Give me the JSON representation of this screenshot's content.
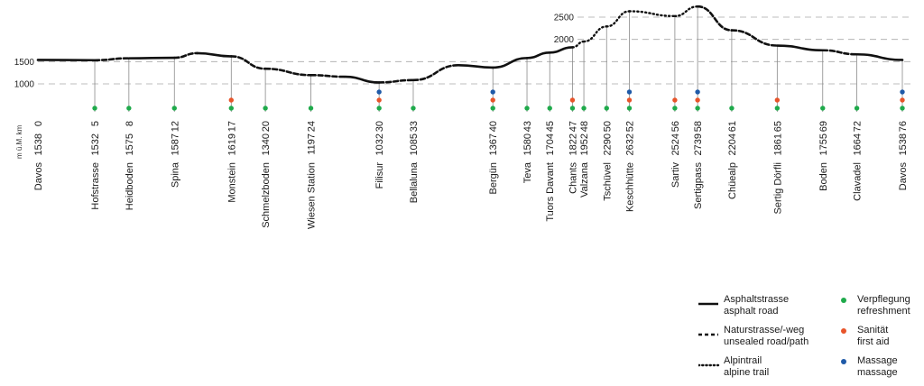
{
  "chart_data": {
    "type": "line",
    "title": "",
    "unit_label": "m ü.M.",
    "km_label": "km",
    "ytick_labels": [
      "1000",
      "1500",
      "2000",
      "2500"
    ],
    "yticks": [
      1000,
      1500,
      2000,
      2500
    ],
    "ylim": [
      850,
      2750
    ],
    "xlim": [
      0,
      76
    ],
    "colors": {
      "refreshment": "#1faa4b",
      "first_aid": "#e8542a",
      "massage": "#1f5aa8",
      "line": "#111111",
      "grid": "#a8a8a8"
    },
    "profile": [
      {
        "km": 0,
        "alt": 1538,
        "surface": "asphalt"
      },
      {
        "km": 5,
        "alt": 1532,
        "surface": "asphalt"
      },
      {
        "km": 8,
        "alt": 1575,
        "surface": "unsealed"
      },
      {
        "km": 12,
        "alt": 1587,
        "surface": "asphalt"
      },
      {
        "km": 14,
        "alt": 1690,
        "surface": "unsealed"
      },
      {
        "km": 17,
        "alt": 1619,
        "surface": "asphalt"
      },
      {
        "km": 20,
        "alt": 1340,
        "surface": "unsealed"
      },
      {
        "km": 24,
        "alt": 1197,
        "surface": "unsealed"
      },
      {
        "km": 27,
        "alt": 1160,
        "surface": "unsealed"
      },
      {
        "km": 30,
        "alt": 1032,
        "surface": "asphalt"
      },
      {
        "km": 33,
        "alt": 1085,
        "surface": "unsealed"
      },
      {
        "km": 37,
        "alt": 1420,
        "surface": "unsealed"
      },
      {
        "km": 40,
        "alt": 1367,
        "surface": "asphalt"
      },
      {
        "km": 43,
        "alt": 1580,
        "surface": "asphalt"
      },
      {
        "km": 45,
        "alt": 1704,
        "surface": "asphalt"
      },
      {
        "km": 47,
        "alt": 1822,
        "surface": "asphalt"
      },
      {
        "km": 48,
        "alt": 1952,
        "surface": "alpine"
      },
      {
        "km": 50,
        "alt": 2290,
        "surface": "alpine"
      },
      {
        "km": 52,
        "alt": 2632,
        "surface": "alpine"
      },
      {
        "km": 56,
        "alt": 2524,
        "surface": "alpine"
      },
      {
        "km": 58,
        "alt": 2739,
        "surface": "alpine"
      },
      {
        "km": 61,
        "alt": 2204,
        "surface": "unsealed"
      },
      {
        "km": 65,
        "alt": 1861,
        "surface": "unsealed"
      },
      {
        "km": 69,
        "alt": 1755,
        "surface": "asphalt"
      },
      {
        "km": 72,
        "alt": 1664,
        "surface": "unsealed"
      },
      {
        "km": 76,
        "alt": 1538,
        "surface": "asphalt"
      }
    ],
    "stations": [
      {
        "name": "Davos",
        "alt": 1538,
        "km": 0,
        "aid": []
      },
      {
        "name": "Hofstrasse",
        "alt": 1532,
        "km": 5,
        "aid": [
          "refreshment"
        ]
      },
      {
        "name": "Heidboden",
        "alt": 1575,
        "km": 8,
        "aid": [
          "refreshment"
        ]
      },
      {
        "name": "Spina",
        "alt": 1587,
        "km": 12,
        "aid": [
          "refreshment"
        ]
      },
      {
        "name": "Monstein",
        "alt": 1619,
        "km": 17,
        "aid": [
          "refreshment",
          "first_aid"
        ]
      },
      {
        "name": "Schmelzboden",
        "alt": 1340,
        "km": 20,
        "aid": [
          "refreshment"
        ]
      },
      {
        "name": "Wiesen Station",
        "alt": 1197,
        "km": 24,
        "aid": [
          "refreshment"
        ]
      },
      {
        "name": "Filisur",
        "alt": 1032,
        "km": 30,
        "aid": [
          "refreshment",
          "first_aid",
          "massage"
        ]
      },
      {
        "name": "Bellaluna",
        "alt": 1085,
        "km": 33,
        "aid": [
          "refreshment"
        ]
      },
      {
        "name": "Bergün",
        "alt": 1367,
        "km": 40,
        "aid": [
          "refreshment",
          "first_aid",
          "massage"
        ]
      },
      {
        "name": "Teva",
        "alt": 1580,
        "km": 43,
        "aid": [
          "refreshment"
        ]
      },
      {
        "name": "Tuors Davant",
        "alt": 1704,
        "km": 45,
        "aid": [
          "refreshment"
        ]
      },
      {
        "name": "Chants",
        "alt": 1822,
        "km": 47,
        "aid": [
          "refreshment",
          "first_aid"
        ]
      },
      {
        "name": "Valzana",
        "alt": 1952,
        "km": 48,
        "aid": [
          "refreshment"
        ]
      },
      {
        "name": "Tschüvel",
        "alt": 2290,
        "km": 50,
        "aid": [
          "refreshment"
        ]
      },
      {
        "name": "Keschhütte",
        "alt": 2632,
        "km": 52,
        "aid": [
          "refreshment",
          "first_aid",
          "massage"
        ]
      },
      {
        "name": "Sartiv",
        "alt": 2524,
        "km": 56,
        "aid": [
          "refreshment",
          "first_aid"
        ]
      },
      {
        "name": "Sertigpass",
        "alt": 2739,
        "km": 58,
        "aid": [
          "refreshment",
          "first_aid",
          "massage"
        ]
      },
      {
        "name": "Chüealp",
        "alt": 2204,
        "km": 61,
        "aid": [
          "refreshment"
        ]
      },
      {
        "name": "Sertig Dörfli",
        "alt": 1861,
        "km": 65,
        "aid": [
          "refreshment",
          "first_aid"
        ]
      },
      {
        "name": "Boden",
        "alt": 1755,
        "km": 69,
        "aid": [
          "refreshment"
        ]
      },
      {
        "name": "Clavadel",
        "alt": 1664,
        "km": 72,
        "aid": [
          "refreshment"
        ]
      },
      {
        "name": "Davos",
        "alt": 1538,
        "km": 76,
        "aid": [
          "refreshment",
          "first_aid",
          "massage"
        ]
      }
    ]
  },
  "legend": {
    "asphalt_de": "Asphaltstrasse",
    "asphalt_en": "asphalt road",
    "unsealed_de": "Naturstrasse/-weg",
    "unsealed_en": "unsealed road/path",
    "alpine_de": "Alpintrail",
    "alpine_en": "alpine trail",
    "refreshment_de": "Verpflegung",
    "refreshment_en": "refreshment",
    "first_aid_de": "Sanität",
    "first_aid_en": "first aid",
    "massage_de": "Massage",
    "massage_en": "massage"
  }
}
